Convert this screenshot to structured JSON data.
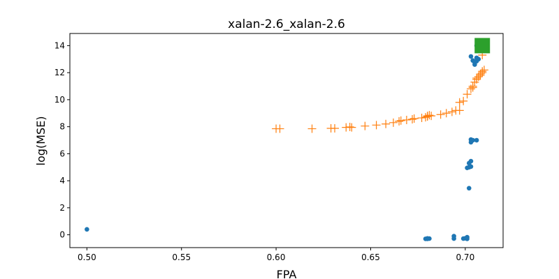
{
  "chart_data": {
    "type": "scatter",
    "title": "xalan-2.6_xalan-2.6",
    "xlabel": "FPA",
    "ylabel": "log(MSE)",
    "xlim": [
      0.491,
      0.72
    ],
    "ylim": [
      -0.95,
      14.9
    ],
    "xticks": [
      0.5,
      0.55,
      0.6,
      0.65,
      0.7
    ],
    "xtick_labels": [
      "0.50",
      "0.55",
      "0.60",
      "0.65",
      "0.70"
    ],
    "yticks": [
      0,
      2,
      4,
      6,
      8,
      10,
      12,
      14
    ],
    "ytick_labels": [
      "0",
      "2",
      "4",
      "6",
      "8",
      "10",
      "12",
      "14"
    ],
    "grid": false,
    "series": [
      {
        "marker": "circle",
        "color": "#1f77b4",
        "points": [
          [
            0.5,
            0.4
          ],
          [
            0.679,
            -0.3
          ],
          [
            0.68,
            -0.3
          ],
          [
            0.681,
            -0.28
          ],
          [
            0.68,
            -0.27
          ],
          [
            0.694,
            -0.1
          ],
          [
            0.694,
            -0.28
          ],
          [
            0.699,
            -0.28
          ],
          [
            0.7,
            -0.26
          ],
          [
            0.701,
            -0.3
          ],
          [
            0.701,
            -0.18
          ],
          [
            0.702,
            3.45
          ],
          [
            0.701,
            4.95
          ],
          [
            0.702,
            5.0
          ],
          [
            0.703,
            5.05
          ],
          [
            0.702,
            5.3
          ],
          [
            0.703,
            5.45
          ],
          [
            0.703,
            6.85
          ],
          [
            0.703,
            7.05
          ],
          [
            0.704,
            7.0
          ],
          [
            0.706,
            7.0
          ],
          [
            0.703,
            13.2
          ],
          [
            0.704,
            12.9
          ],
          [
            0.705,
            12.75
          ],
          [
            0.705,
            12.6
          ],
          [
            0.706,
            12.85
          ],
          [
            0.707,
            13.0
          ],
          [
            0.706,
            13.1
          ],
          [
            0.706,
            14.0
          ],
          [
            0.707,
            14.1
          ],
          [
            0.708,
            14.05
          ]
        ]
      },
      {
        "marker": "plus",
        "color": "#ff7f0e",
        "points": [
          [
            0.6,
            7.85
          ],
          [
            0.602,
            7.85
          ],
          [
            0.619,
            7.85
          ],
          [
            0.629,
            7.88
          ],
          [
            0.631,
            7.88
          ],
          [
            0.637,
            7.95
          ],
          [
            0.639,
            7.98
          ],
          [
            0.64,
            7.95
          ],
          [
            0.647,
            8.05
          ],
          [
            0.653,
            8.12
          ],
          [
            0.658,
            8.2
          ],
          [
            0.662,
            8.3
          ],
          [
            0.665,
            8.4
          ],
          [
            0.666,
            8.45
          ],
          [
            0.669,
            8.5
          ],
          [
            0.672,
            8.55
          ],
          [
            0.673,
            8.6
          ],
          [
            0.677,
            8.65
          ],
          [
            0.679,
            8.7
          ],
          [
            0.68,
            8.75
          ],
          [
            0.68,
            8.8
          ],
          [
            0.681,
            8.85
          ],
          [
            0.682,
            8.8
          ],
          [
            0.687,
            8.9
          ],
          [
            0.69,
            9.0
          ],
          [
            0.693,
            9.1
          ],
          [
            0.695,
            9.2
          ],
          [
            0.697,
            9.2
          ],
          [
            0.697,
            9.8
          ],
          [
            0.699,
            9.9
          ],
          [
            0.701,
            10.4
          ],
          [
            0.703,
            10.8
          ],
          [
            0.704,
            11.0
          ],
          [
            0.704,
            10.9
          ],
          [
            0.705,
            11.3
          ],
          [
            0.706,
            11.5
          ],
          [
            0.706,
            11.6
          ],
          [
            0.707,
            11.7
          ],
          [
            0.708,
            11.8
          ],
          [
            0.708,
            11.9
          ],
          [
            0.709,
            12.0
          ],
          [
            0.709,
            12.1
          ],
          [
            0.71,
            12.2
          ],
          [
            0.709,
            13.3
          ],
          [
            0.708,
            13.8
          ]
        ]
      },
      {
        "marker": "square",
        "color": "#2ca02c",
        "points": [
          [
            0.709,
            14.0
          ]
        ]
      }
    ]
  }
}
